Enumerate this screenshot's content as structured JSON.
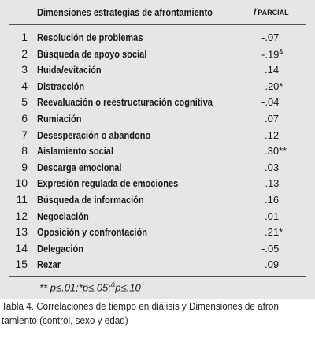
{
  "header": {
    "title": "Dimensiones estrategias de afrontamiento",
    "r_symbol": "r",
    "r_sub": "PARCIAL"
  },
  "table": {
    "rows": [
      {
        "n": "1",
        "label": "Resolución de problemas",
        "r": "-.07"
      },
      {
        "n": "2",
        "label": "Búsqueda de apoyo social",
        "r": "-.19",
        "note": "&"
      },
      {
        "n": "3",
        "label": "Huida/evitación",
        "r": ".14"
      },
      {
        "n": "4",
        "label": "Distracción",
        "r": "-.20*"
      },
      {
        "n": "5",
        "label": "Reevaluación o reestructuración cognitiva",
        "r": "-.04"
      },
      {
        "n": "6",
        "label": "Rumiación",
        "r": ".07"
      },
      {
        "n": "7",
        "label": "Desesperación o abandono",
        "r": ".12"
      },
      {
        "n": "8",
        "label": "Aislamiento social",
        "r": ".30**"
      },
      {
        "n": "9",
        "label": "Descarga emocional",
        "r": ".03"
      },
      {
        "n": "10",
        "label": "Expresión regulada de emociones",
        "r": "-.13"
      },
      {
        "n": "11",
        "label": "Búsqueda de información",
        "r": ".16"
      },
      {
        "n": "12",
        "label": "Negociación",
        "r": ".01"
      },
      {
        "n": "13",
        "label": "Oposición y confrontación",
        "r": ".21*"
      },
      {
        "n": "14",
        "label": "Delegación",
        "r": "-.05"
      },
      {
        "n": "15",
        "label": "Rezar",
        "r": ".09"
      }
    ]
  },
  "footnote": [
    "** p≤.01;*p≤.05;",
    "&",
    "p≤.10"
  ],
  "caption": [
    "Tabla 4. Correlaciones de tiempo en diálisis  y  Dimensiones de afron",
    "tamiento (control, sexo y edad)"
  ]
}
